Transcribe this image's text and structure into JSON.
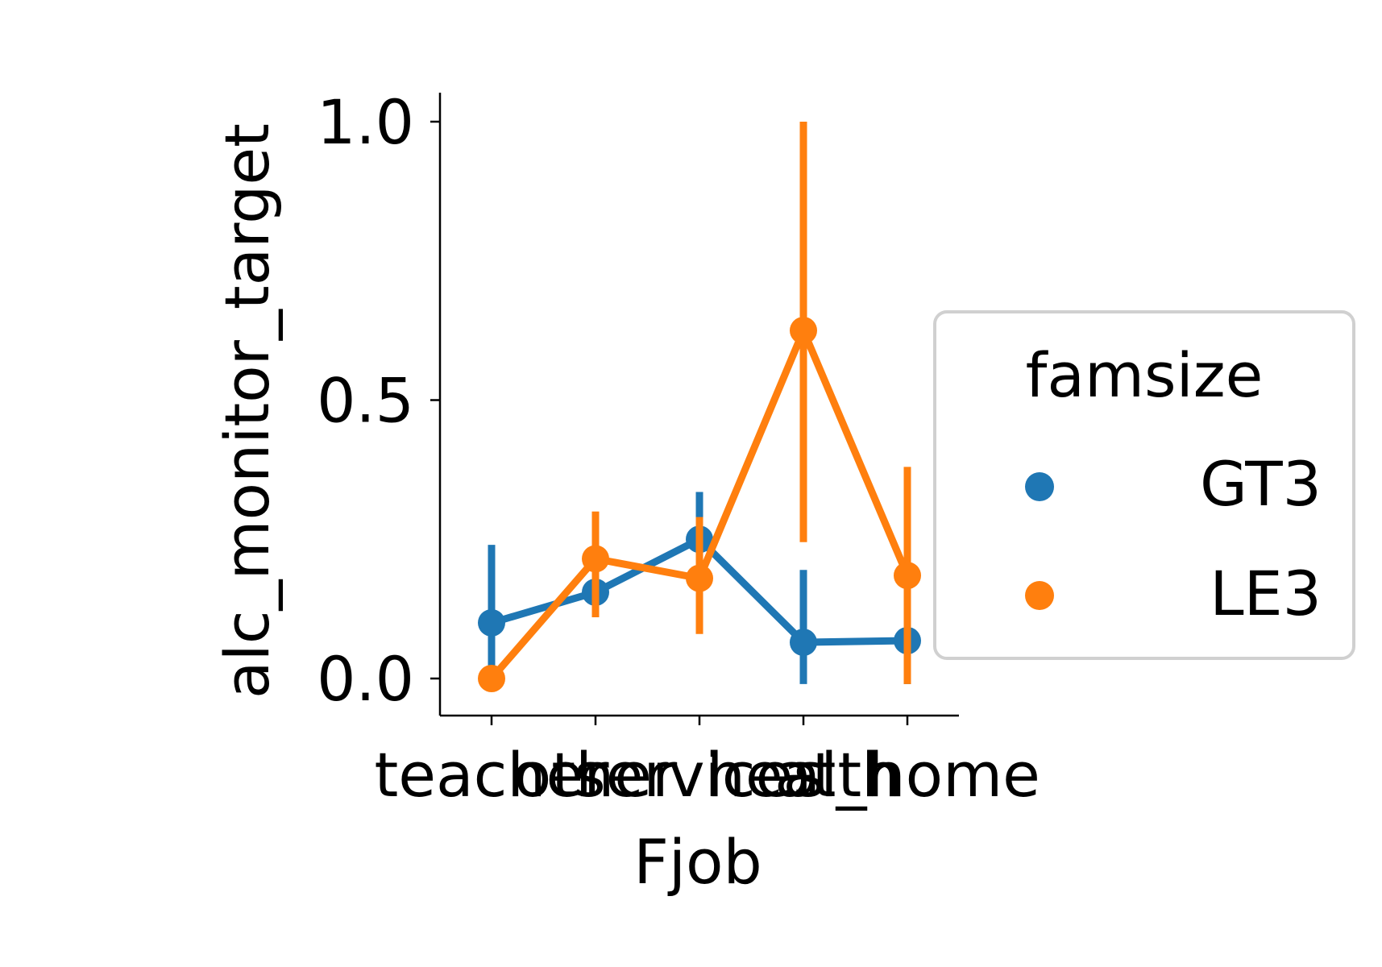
{
  "chart_data": {
    "type": "line",
    "xlabel": "Fjob",
    "ylabel": "alc_monitor_target",
    "categories": [
      "teacher",
      "other",
      "services",
      "health",
      "at_home"
    ],
    "ylim": [
      -0.07,
      1.05
    ],
    "yticks": [
      0.0,
      0.5,
      1.0
    ],
    "ytick_labels": [
      "0.0",
      "0.5",
      "1.0"
    ],
    "grid": false,
    "legend": {
      "title": "famsize",
      "placement": "center-right outside",
      "entries": [
        "GT3",
        "LE3"
      ]
    },
    "series": [
      {
        "name": "GT3",
        "color": "#1f77b4",
        "values": [
          0.1,
          0.155,
          0.25,
          0.065,
          0.068
        ],
        "ci_low": [
          0.02,
          0.11,
          0.17,
          -0.01,
          -0.01
        ],
        "ci_high": [
          0.24,
          0.2,
          0.335,
          0.195,
          0.21
        ]
      },
      {
        "name": "LE3",
        "color": "#ff7f0e",
        "values": [
          0.0,
          0.215,
          0.18,
          0.625,
          0.185
        ],
        "ci_low": [
          0.0,
          0.11,
          0.08,
          0.245,
          -0.01
        ],
        "ci_high": [
          0.0,
          0.3,
          0.29,
          1.0,
          0.38
        ]
      }
    ]
  }
}
